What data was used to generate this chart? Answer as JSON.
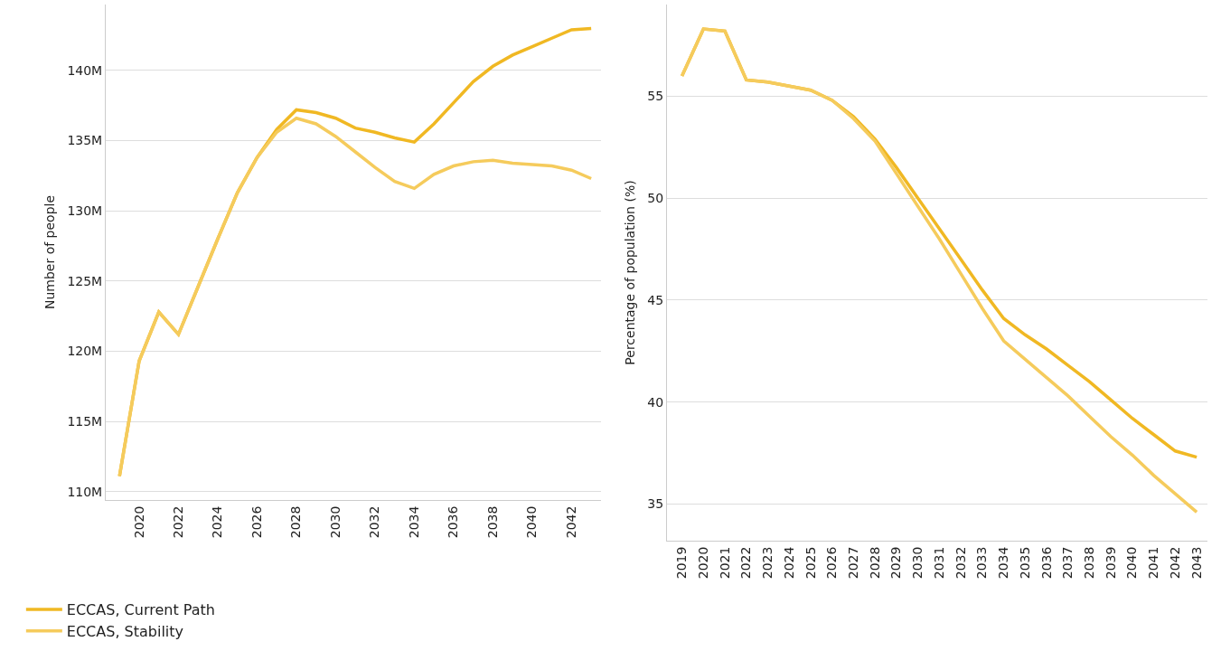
{
  "chart_data": [
    {
      "type": "line",
      "ylabel": "Number of people",
      "x": [
        2019,
        2020,
        2021,
        2022,
        2023,
        2024,
        2025,
        2026,
        2027,
        2028,
        2029,
        2030,
        2031,
        2032,
        2033,
        2034,
        2035,
        2036,
        2037,
        2038,
        2039,
        2040,
        2041,
        2042,
        2043
      ],
      "xlim": [
        2018.3,
        2043.5
      ],
      "xticks": [
        2020,
        2022,
        2024,
        2026,
        2028,
        2030,
        2032,
        2034,
        2036,
        2038,
        2040,
        2042
      ],
      "ylim": [
        109.4,
        144.7
      ],
      "yticks": [
        {
          "value": 110,
          "label": "110M"
        },
        {
          "value": 115,
          "label": "115M"
        },
        {
          "value": 120,
          "label": "120M"
        },
        {
          "value": 125,
          "label": "125M"
        },
        {
          "value": 130,
          "label": "130M"
        },
        {
          "value": 135,
          "label": "135M"
        },
        {
          "value": 140,
          "label": "140M"
        }
      ],
      "grid": "y",
      "legend": "bottom",
      "line_style": "solid",
      "marker": "none",
      "series": [
        {
          "name": "ECCAS, Current Path",
          "color": "#f0b823",
          "values": [
            111.1,
            119.3,
            122.8,
            121.2,
            124.6,
            128.0,
            131.3,
            133.8,
            135.8,
            137.2,
            137.0,
            136.6,
            135.9,
            135.6,
            135.2,
            134.9,
            136.2,
            137.7,
            139.2,
            140.3,
            141.1,
            141.7,
            142.3,
            142.9,
            143.0
          ]
        },
        {
          "name": "ECCAS, Stability",
          "color": "#f5cb5c",
          "values": [
            111.1,
            119.3,
            122.8,
            121.2,
            124.6,
            128.0,
            131.3,
            133.8,
            135.6,
            136.6,
            136.2,
            135.3,
            134.2,
            133.1,
            132.1,
            131.6,
            132.6,
            133.2,
            133.5,
            133.6,
            133.4,
            133.3,
            133.2,
            132.9,
            132.3
          ]
        }
      ]
    },
    {
      "type": "line",
      "ylabel": "Percentage of population (%)",
      "categories": [
        "2019",
        "2020",
        "2021",
        "2022",
        "2023",
        "2024",
        "2025",
        "2026",
        "2027",
        "2028",
        "2029",
        "2030",
        "2031",
        "2032",
        "2033",
        "2034",
        "2035",
        "2036",
        "2037",
        "2038",
        "2039",
        "2040",
        "2041",
        "2042",
        "2043"
      ],
      "ylim": [
        33.2,
        59.5
      ],
      "yticks": [
        35,
        40,
        45,
        50,
        55
      ],
      "grid": "y",
      "legend": false,
      "line_style": "solid",
      "marker": "none",
      "series": [
        {
          "color": "#f0b823",
          "values": [
            56.0,
            58.3,
            58.2,
            55.8,
            55.7,
            55.5,
            55.3,
            54.8,
            54.0,
            52.9,
            51.5,
            50.0,
            48.5,
            47.0,
            45.5,
            44.1,
            43.3,
            42.6,
            41.8,
            41.0,
            40.1,
            39.2,
            38.4,
            37.6,
            37.3
          ]
        },
        {
          "color": "#f5cb5c",
          "values": [
            56.0,
            58.3,
            58.2,
            55.8,
            55.7,
            55.5,
            55.3,
            54.8,
            53.9,
            52.8,
            51.2,
            49.6,
            48.0,
            46.3,
            44.6,
            43.0,
            42.1,
            41.2,
            40.3,
            39.3,
            38.3,
            37.4,
            36.4,
            35.5,
            34.6
          ]
        }
      ]
    }
  ]
}
